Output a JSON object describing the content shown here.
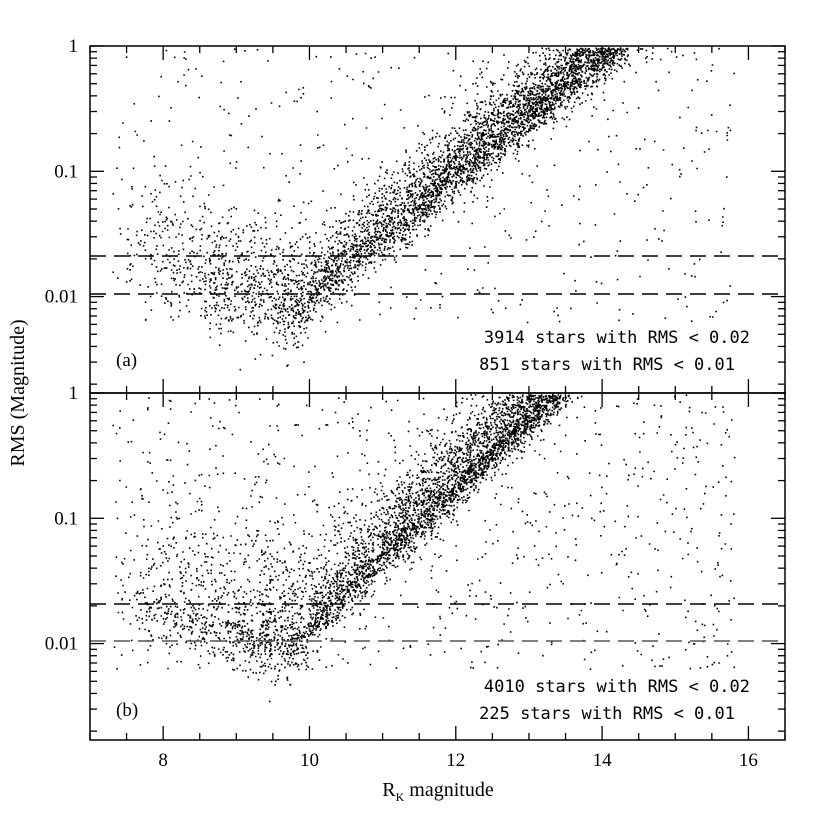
{
  "chart_data": {
    "type": "scatter",
    "xlabel_main": "R",
    "xlabel_sub": "K",
    "xlabel_rest": " magnitude",
    "ylabel": "RMS (Magnitude)",
    "x_range": [
      7.0,
      16.5
    ],
    "x_ticks": [
      {
        "value": 8,
        "label": "8"
      },
      {
        "value": 10,
        "label": "10"
      },
      {
        "value": 12,
        "label": "12"
      },
      {
        "value": 14,
        "label": "14"
      },
      {
        "value": 16,
        "label": "16"
      }
    ],
    "y_scale": "log",
    "panels": [
      {
        "tag": "(a)",
        "y_range": [
          0.0017,
          1
        ],
        "y_ticks": [
          {
            "value": 1,
            "label": "1"
          },
          {
            "value": 0.1,
            "label": "0.1"
          },
          {
            "value": 0.01,
            "label": "0.01"
          }
        ],
        "thresholds": [
          0.02,
          0.01
        ],
        "annotations": [
          "3914 stars with RMS < 0.02",
          "851 stars with RMS < 0.01"
        ],
        "scatter_model": {
          "floor": 0.0095,
          "floor_min_x": 9.8,
          "k": 0.48,
          "spread_low": 0.13,
          "spread_high": 0.14,
          "x_start": 7.3,
          "x_end": 15.9,
          "n_points": 7500,
          "n_outliers": 500
        }
      },
      {
        "tag": "(b)",
        "y_range": [
          0.0017,
          1
        ],
        "y_ticks": [
          {
            "value": 1,
            "label": "1"
          },
          {
            "value": 0.1,
            "label": "0.1"
          },
          {
            "value": 0.01,
            "label": "0.01"
          }
        ],
        "thresholds": [
          0.02,
          0.01
        ],
        "annotations": [
          "4010 stars with RMS < 0.02",
          "225 stars with RMS < 0.01"
        ],
        "scatter_model": {
          "floor": 0.011,
          "floor_min_x": 9.7,
          "k": 0.55,
          "spread_low": 0.11,
          "spread_high": 0.18,
          "x_start": 7.3,
          "x_end": 15.9,
          "n_points": 8500,
          "n_outliers": 900
        }
      }
    ]
  }
}
